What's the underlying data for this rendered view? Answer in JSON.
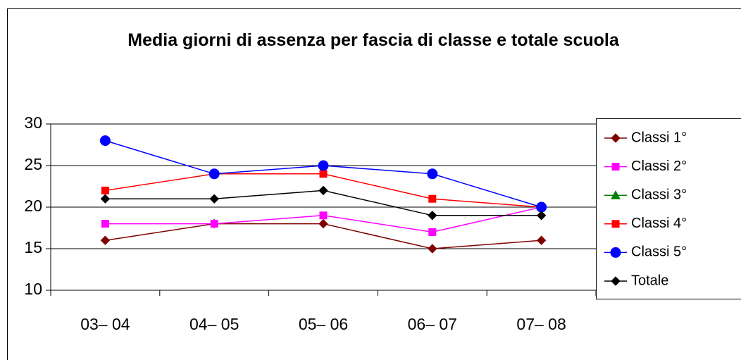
{
  "chart_data": {
    "type": "line",
    "title": "Media giorni di assenza per fascia di classe e totale scuola",
    "categories": [
      "03– 04",
      "04– 05",
      "05– 06",
      "06– 07",
      "07– 08"
    ],
    "series": [
      {
        "name": "Classi 1°",
        "color": "#800000",
        "marker": "diamond",
        "values": [
          16,
          18,
          18,
          15,
          16
        ]
      },
      {
        "name": "Classi 2°",
        "color": "#ff00ff",
        "marker": "square",
        "values": [
          18,
          18,
          19,
          17,
          20
        ]
      },
      {
        "name": "Classi 3°",
        "color": "#008000",
        "marker": "triangle",
        "values": [
          null,
          null,
          null,
          null,
          null
        ]
      },
      {
        "name": "Classi 4°",
        "color": "#ff0000",
        "marker": "square",
        "values": [
          22,
          24,
          24,
          21,
          20
        ]
      },
      {
        "name": "Classi 5°",
        "color": "#0000ff",
        "marker": "circle",
        "values": [
          28,
          24,
          25,
          24,
          20
        ]
      },
      {
        "name": "Totale",
        "color": "#000000",
        "marker": "diamond",
        "values": [
          21,
          21,
          22,
          19,
          19
        ]
      }
    ],
    "ylim": [
      10,
      30
    ],
    "yticks": [
      10,
      15,
      20,
      25,
      30
    ],
    "grid": true,
    "legend": "right"
  }
}
